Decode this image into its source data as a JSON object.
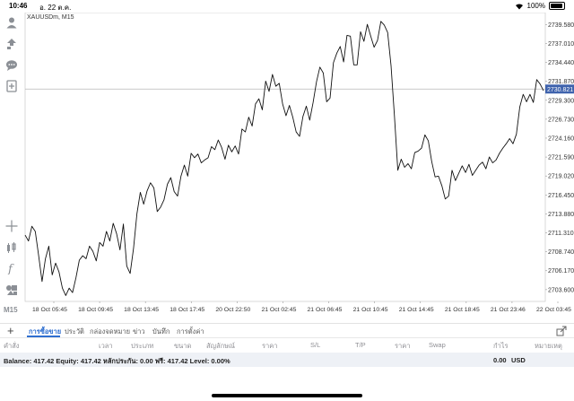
{
  "status": {
    "time": "10:46",
    "date": "อ. 22 ต.ค.",
    "battery": "100%"
  },
  "chart": {
    "symbol": "XAUUSDm, M15",
    "timeframe": "M15",
    "current_price": "2730.821"
  },
  "chart_data": {
    "type": "line",
    "price_axis": [
      "2739.580",
      "2737.010",
      "2734.440",
      "2731.870",
      "2729.300",
      "2726.730",
      "2724.160",
      "2721.590",
      "2719.020",
      "2716.450",
      "2713.880",
      "2711.310",
      "2708.740",
      "2706.170",
      "2703.600"
    ],
    "time_axis": [
      "18 Oct 05:45",
      "18 Oct 09:45",
      "18 Oct 13:45",
      "18 Oct 17:45",
      "20 Oct 22:50",
      "21 Oct 02:45",
      "21 Oct 06:45",
      "21 Oct 10:45",
      "21 Oct 14:45",
      "21 Oct 18:45",
      "21 Oct 23:46",
      "22 Oct 03:45"
    ],
    "current_price": 2730.821,
    "ylim": [
      2702.0,
      2741.2
    ],
    "values": [
      2711.0,
      2710.2,
      2712.2,
      2711.5,
      2708.2,
      2704.7,
      2707.8,
      2709.5,
      2705.6,
      2707.2,
      2706.0,
      2703.8,
      2702.8,
      2703.8,
      2703.2,
      2705.2,
      2707.6,
      2708.2,
      2707.8,
      2709.5,
      2708.8,
      2707.5,
      2710.0,
      2709.5,
      2711.5,
      2710.2,
      2712.6,
      2711.2,
      2709.0,
      2712.5,
      2706.8,
      2705.8,
      2709.2,
      2713.9,
      2716.8,
      2715.2,
      2717.0,
      2718.1,
      2717.4,
      2714.2,
      2714.8,
      2715.8,
      2717.9,
      2718.8,
      2716.9,
      2716.3,
      2719.0,
      2720.5,
      2719.0,
      2722.1,
      2721.5,
      2722.0,
      2720.8,
      2721.2,
      2721.5,
      2723.0,
      2722.6,
      2723.9,
      2722.9,
      2721.3,
      2723.2,
      2722.3,
      2723.1,
      2722.0,
      2725.4,
      2725.0,
      2727.0,
      2725.8,
      2728.8,
      2729.5,
      2728.0,
      2731.9,
      2730.5,
      2732.8,
      2731.2,
      2731.6,
      2728.8,
      2727.2,
      2728.6,
      2727.0,
      2725.0,
      2724.4,
      2727.1,
      2728.5,
      2726.6,
      2729.0,
      2731.8,
      2733.8,
      2733.0,
      2729.1,
      2729.6,
      2734.4,
      2735.7,
      2736.6,
      2734.5,
      2738.1,
      2738.0,
      2734.1,
      2734.1,
      2738.6,
      2737.3,
      2739.6,
      2738.0,
      2736.5,
      2737.4,
      2740.0,
      2739.5,
      2738.5,
      2734.0,
      2727.2,
      2719.8,
      2721.3,
      2720.2,
      2720.7,
      2720.0,
      2722.2,
      2722.4,
      2722.8,
      2724.6,
      2723.8,
      2721.0,
      2718.9,
      2719.0,
      2717.7,
      2715.9,
      2716.3,
      2719.8,
      2718.4,
      2719.4,
      2720.4,
      2719.5,
      2720.6,
      2719.1,
      2719.8,
      2720.5,
      2720.9,
      2720.0,
      2721.6,
      2720.8,
      2721.2,
      2722.1,
      2722.8,
      2723.4,
      2724.1,
      2723.4,
      2724.7,
      2728.4,
      2730.1,
      2729.1,
      2730.1,
      2729.0,
      2732.1,
      2731.5,
      2730.6
    ],
    "xlabel": "",
    "ylabel": "",
    "grid": false
  },
  "toolbar": {
    "tools": [
      {
        "icon": "account-icon"
      },
      {
        "icon": "trade-arrows-icon"
      },
      {
        "icon": "chat-icon"
      },
      {
        "icon": "new-order-icon"
      },
      {
        "icon": "crosshair-icon"
      },
      {
        "icon": "indicators-icon"
      },
      {
        "icon": "function-icon"
      },
      {
        "icon": "objects-icon"
      }
    ]
  },
  "tabs": [
    "การซื้อขาย",
    "ประวัติ",
    "กล่องจดหมาย",
    "ข่าว",
    "บันทึก",
    "การตั้งค่า"
  ],
  "columns": [
    "คำสั่ง",
    "เวลา",
    "ประเภท",
    "ขนาด",
    "สัญลักษณ์",
    "ราคา",
    "S/L",
    "T/P",
    "ราคา",
    "Swap",
    "กำไร",
    "หมายเหตุ"
  ],
  "balance": {
    "summary": "Balance: 417.42 Equity: 417.42 หลักประกัน: 0.00 ฟรี: 417.42 Level: 0.00%",
    "profit": "0.00",
    "currency": "USD"
  },
  "colors": {
    "accent": "#2f6fd0",
    "price_tag": "#3f63ad",
    "line": "#111111"
  }
}
